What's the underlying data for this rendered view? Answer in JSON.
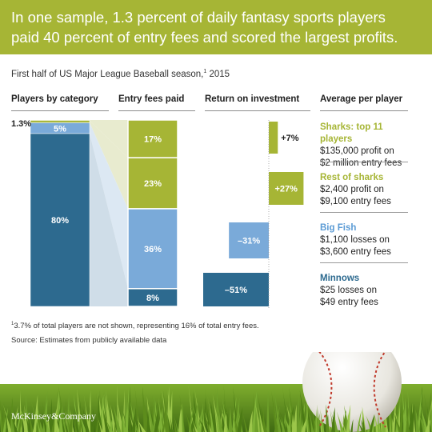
{
  "header": {
    "line1": "In one sample, 1.3 percent of daily fantasy sports players",
    "line2": "paid 40 percent of entry fees and scored the largest profits."
  },
  "subtitle": {
    "text": "First half of US Major League Baseball season,",
    "sup": "1",
    "year": " 2015"
  },
  "columns": {
    "players": "Players by category",
    "fees": "Entry fees paid",
    "roi": "Return on investment",
    "avg": "Average per player"
  },
  "chart_data": {
    "type": "bar",
    "categories": [
      "Sharks: top 11 players",
      "Rest of sharks",
      "Big Fish",
      "Minnows"
    ],
    "players_pct": [
      0.3,
      1.0,
      5,
      80
    ],
    "players_labels": [
      "1.3%",
      "",
      "5%",
      "80%"
    ],
    "fees_pct": [
      17,
      23,
      36,
      8
    ],
    "fees_labels": [
      "17%",
      "23%",
      "36%",
      "8%"
    ],
    "roi_pct": [
      7,
      27,
      -31,
      -51
    ],
    "roi_labels": [
      "+7%",
      "+27%",
      "–31%",
      "–51%"
    ],
    "colors": [
      "#a6b535",
      "#a6b535",
      "#7aaad9",
      "#2d6a8f"
    ]
  },
  "categories_detail": [
    {
      "name": "Sharks: top 11 players",
      "line1": "$135,000 profit on",
      "line2": "$2 million entry fees",
      "color": "#a6b535"
    },
    {
      "name": "Rest of sharks",
      "line1": "$2,400 profit on",
      "line2": "$9,100 entry fees",
      "color": "#a6b535"
    },
    {
      "name": "Big Fish",
      "line1": "$1,100 losses on",
      "line2": "$3,600 entry fees",
      "color": "#5b9bd5"
    },
    {
      "name": "Minnows",
      "line1": "$25 losses on",
      "line2": "$49 entry fees",
      "color": "#2d6a8f"
    }
  ],
  "footnote": {
    "sup": "1",
    "text": "3.7% of total players are not shown, representing 16% of total entry fees."
  },
  "source": "Source: Estimates from publicly available data",
  "logo": "McKinsey&Company",
  "colors": {
    "header": "#a6b535",
    "green": "#a6b535",
    "lightblue": "#7aaad9",
    "darkblue": "#2d6a8f"
  }
}
